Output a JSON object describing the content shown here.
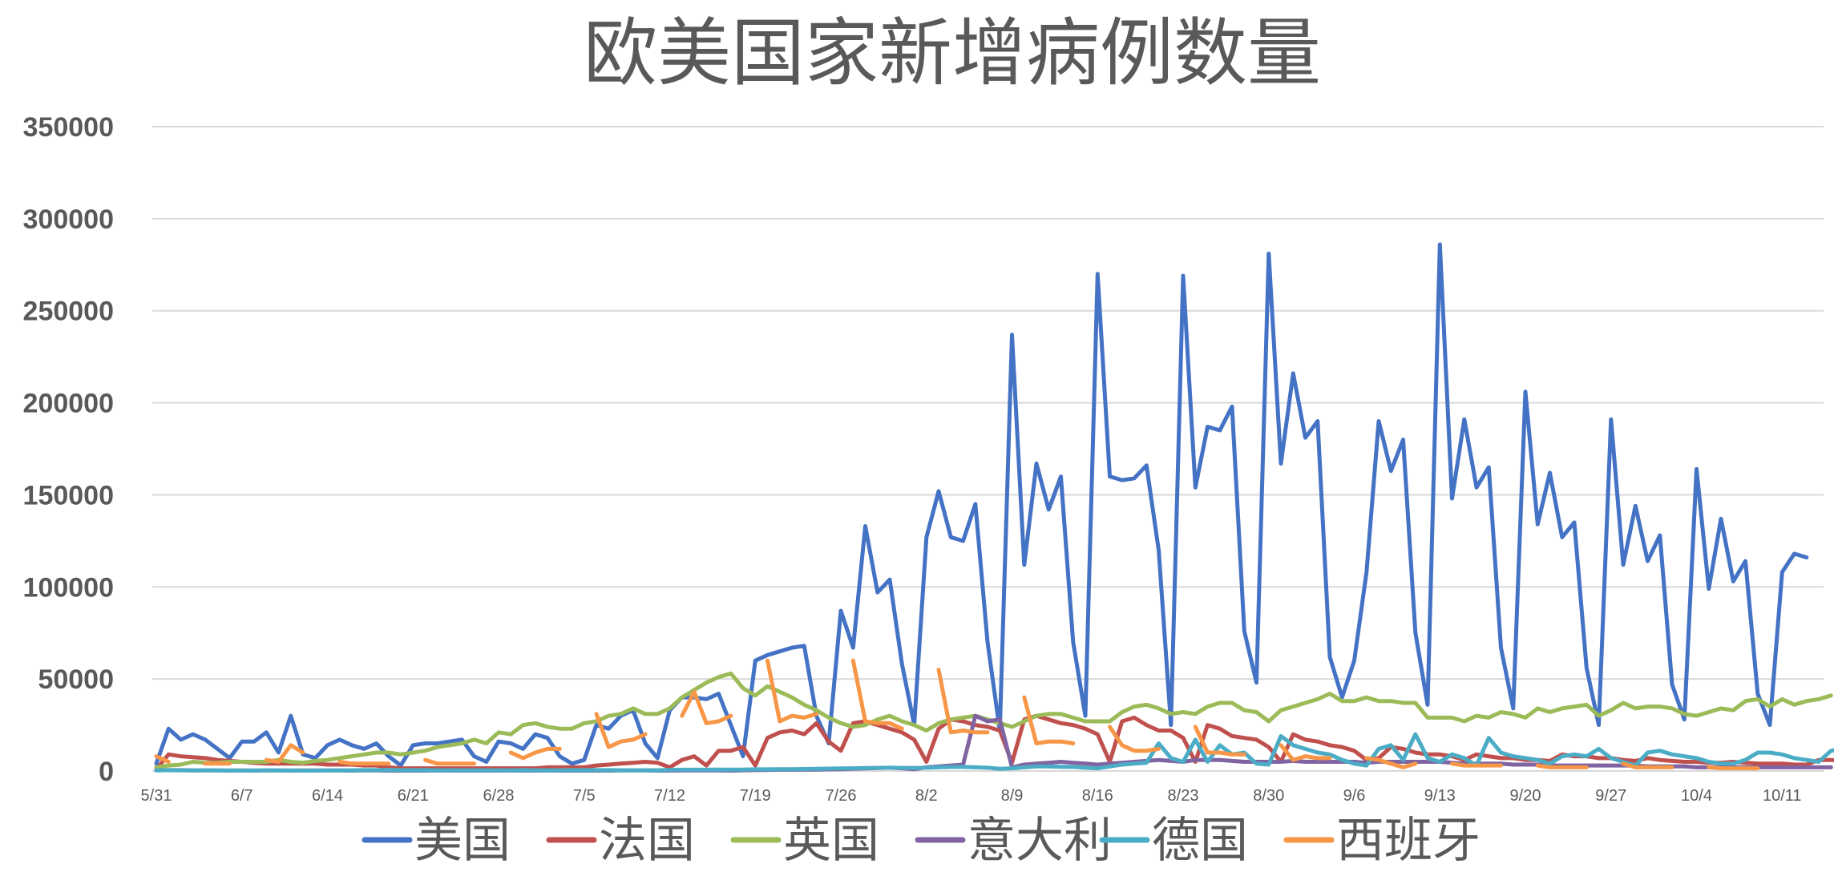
{
  "chart_data": {
    "type": "line",
    "title": "欧美国家新增病例数量",
    "xlabel": "",
    "ylabel": "",
    "ylim": [
      0,
      350000
    ],
    "y_ticks": [
      0,
      50000,
      100000,
      150000,
      200000,
      250000,
      300000,
      350000
    ],
    "y_tick_labels": [
      "0",
      "50000",
      "100000",
      "150000",
      "200000",
      "250000",
      "300000",
      "350000"
    ],
    "x_start": "5/31",
    "x_ticks": [
      "5/31",
      "6/7",
      "6/14",
      "6/21",
      "6/28",
      "7/5",
      "7/12",
      "7/19",
      "7/26",
      "8/2",
      "8/9",
      "8/16",
      "8/23",
      "8/30",
      "9/6",
      "9/13",
      "9/20",
      "9/27",
      "10/4",
      "10/11"
    ],
    "grid": true,
    "legend": "bottom",
    "series": [
      {
        "name": "美国",
        "color": "#4472c4",
        "values": [
          4000,
          23000,
          17000,
          20000,
          17000,
          12000,
          7000,
          16000,
          16000,
          21000,
          10000,
          30000,
          9000,
          7000,
          14000,
          17000,
          14000,
          12000,
          15000,
          8000,
          3000,
          14000,
          15000,
          15000,
          16000,
          17000,
          8000,
          5000,
          16000,
          15000,
          12000,
          20000,
          18000,
          8000,
          4000,
          6000,
          25000,
          23000,
          30000,
          33000,
          15000,
          7000,
          33000,
          40000,
          40000,
          39000,
          42000,
          25000,
          8000,
          60000,
          63000,
          65000,
          67000,
          68000,
          30000,
          15000,
          87000,
          67000,
          133000,
          97000,
          104000,
          58000,
          25000,
          127000,
          152000,
          127000,
          125000,
          145000,
          70000,
          22000,
          237000,
          112000,
          167000,
          142000,
          160000,
          70000,
          30000,
          270000,
          160000,
          158000,
          159000,
          166000,
          120000,
          25000,
          269000,
          154000,
          187000,
          185000,
          198000,
          76000,
          48000,
          281000,
          167000,
          216000,
          181000,
          190000,
          62000,
          40000,
          60000,
          108000,
          190000,
          163000,
          180000,
          75000,
          36000,
          286000,
          148000,
          191000,
          154000,
          165000,
          67000,
          34000,
          206000,
          134000,
          162000,
          127000,
          135000,
          56000,
          25000,
          191000,
          112000,
          144000,
          114000,
          128000,
          47000,
          28000,
          164000,
          99000,
          137000,
          103000,
          114000,
          42000,
          25000,
          108000,
          118000,
          116000
        ]
      },
      {
        "name": "法国",
        "color": "#c0504d",
        "values": [
          1000,
          9000,
          8000,
          7500,
          7000,
          6000,
          5500,
          5000,
          4500,
          4000,
          4000,
          4000,
          4000,
          4000,
          3500,
          3500,
          3500,
          3000,
          3000,
          2000,
          1500,
          1500,
          1500,
          1500,
          1500,
          1500,
          1500,
          1500,
          1500,
          1500,
          1500,
          1500,
          2000,
          2000,
          2000,
          2000,
          3000,
          3500,
          4000,
          4500,
          5000,
          4500,
          2000,
          6000,
          8000,
          3000,
          11000,
          11000,
          13000,
          3000,
          18000,
          21000,
          22000,
          20000,
          26000,
          16000,
          11000,
          26000,
          27000,
          25000,
          23000,
          21000,
          17000,
          5000,
          23000,
          28000,
          27000,
          25000,
          24000,
          22000,
          4500,
          28000,
          30000,
          28000,
          26000,
          25000,
          23000,
          20000,
          5000,
          27000,
          29000,
          25000,
          22000,
          22000,
          18000,
          5000,
          25000,
          23000,
          19000,
          18000,
          17000,
          13000,
          5000,
          20000,
          17000,
          16000,
          14000,
          13000,
          11000,
          6000,
          7000,
          13000,
          12000,
          10000,
          9000,
          9000,
          8000,
          6000,
          9000,
          8000,
          7000,
          7000,
          6000,
          6000,
          5500,
          9000,
          8000,
          8000,
          7000,
          7000,
          6000,
          5500,
          7000,
          6000,
          5500,
          5000,
          5000,
          4500,
          4500,
          5000,
          4500,
          4000,
          4000,
          4000,
          3500,
          3500,
          6000,
          6000,
          5500
        ]
      },
      {
        "name": "英国",
        "color": "#9bbb59",
        "values": [
          2000,
          3000,
          3500,
          5000,
          4500,
          4500,
          5000,
          5000,
          5000,
          5000,
          6000,
          5000,
          4500,
          5500,
          6000,
          7000,
          8000,
          9000,
          10000,
          10000,
          9000,
          10000,
          11000,
          13000,
          14000,
          15000,
          17000,
          15000,
          21000,
          20000,
          25000,
          26000,
          24000,
          23000,
          23000,
          26000,
          27000,
          30000,
          31000,
          34000,
          31000,
          31000,
          34000,
          40000,
          44000,
          48000,
          51000,
          53000,
          45000,
          41000,
          46000,
          43000,
          40000,
          36000,
          33000,
          29000,
          26000,
          24000,
          25000,
          28000,
          30000,
          27000,
          25000,
          22000,
          26000,
          28000,
          29000,
          30000,
          28000,
          26000,
          24000,
          27000,
          30000,
          31000,
          31000,
          29000,
          27000,
          27000,
          27000,
          32000,
          35000,
          36000,
          34000,
          31000,
          32000,
          31000,
          35000,
          37000,
          37000,
          33000,
          32000,
          27000,
          33000,
          35000,
          37000,
          39000,
          42000,
          38000,
          38000,
          40000,
          38000,
          38000,
          37000,
          37000,
          29000,
          29000,
          29000,
          27000,
          30000,
          29000,
          32000,
          31000,
          29000,
          34000,
          32000,
          34000,
          35000,
          36000,
          30000,
          33000,
          37000,
          34000,
          35000,
          35000,
          34000,
          31000,
          30000,
          32000,
          34000,
          33000,
          38000,
          39000,
          35000,
          39000,
          36000,
          38000,
          39000,
          41000
        ]
      },
      {
        "name": "意大利",
        "color": "#8064a2",
        "values": [
          400,
          500,
          500,
          300,
          300,
          300,
          200,
          300,
          200,
          300,
          300,
          200,
          300,
          300,
          300,
          300,
          200,
          300,
          300,
          200,
          200,
          200,
          200,
          300,
          200,
          200,
          200,
          200,
          200,
          300,
          200,
          200,
          300,
          200,
          200,
          200,
          200,
          200,
          300,
          300,
          300,
          200,
          200,
          300,
          300,
          300,
          300,
          200,
          400,
          500,
          600,
          700,
          700,
          800,
          800,
          900,
          1000,
          1200,
          1400,
          1600,
          1800,
          1500,
          1000,
          2000,
          2500,
          3000,
          3500,
          30000,
          27000,
          28000,
          2000,
          3500,
          4000,
          4500,
          5000,
          4500,
          4000,
          3500,
          4000,
          4500,
          5000,
          5500,
          6000,
          5500,
          5000,
          6000,
          6000,
          6000,
          5500,
          5000,
          5000,
          5000,
          5000,
          5500,
          5000,
          5000,
          5000,
          5000,
          5000,
          4500,
          5000,
          5000,
          5000,
          5000,
          5000,
          5000,
          4500,
          4000,
          4000,
          4000,
          4000,
          3500,
          3500,
          3500,
          3000,
          3000,
          3000,
          3000,
          3000,
          3000,
          3000,
          3000,
          2500,
          2500,
          2500,
          2500,
          2000,
          2000,
          2000,
          2000,
          2000,
          2000,
          2000,
          2000,
          2000,
          2000,
          2000,
          2000
        ]
      },
      {
        "name": "德国",
        "color": "#4bacc6",
        "values": [
          300,
          500,
          400,
          300,
          400,
          300,
          300,
          200,
          300,
          400,
          300,
          300,
          200,
          200,
          300,
          300,
          400,
          500,
          500,
          600,
          500,
          500,
          500,
          400,
          400,
          400,
          400,
          400,
          400,
          400,
          500,
          400,
          400,
          400,
          500,
          500,
          500,
          500,
          400,
          400,
          400,
          400,
          600,
          700,
          700,
          700,
          800,
          800,
          800,
          900,
          900,
          1000,
          1000,
          1100,
          1200,
          1300,
          1400,
          1500,
          1600,
          1700,
          1800,
          1700,
          1600,
          1800,
          2000,
          2200,
          2200,
          2000,
          1800,
          1200,
          1500,
          2000,
          2500,
          2500,
          2300,
          2200,
          1800,
          1500,
          2500,
          3500,
          4000,
          4500,
          15000,
          7000,
          5000,
          17000,
          5000,
          14000,
          9000,
          10000,
          4000,
          3500,
          19000,
          14000,
          12000,
          10000,
          9000,
          6000,
          4000,
          3000,
          12000,
          14000,
          6000,
          20000,
          7000,
          5000,
          9000,
          7000,
          3000,
          18000,
          10000,
          8000,
          7000,
          6000,
          4000,
          8000,
          9000,
          8000,
          12000,
          7000,
          5000,
          3000,
          10000,
          11000,
          9000,
          8000,
          7000,
          5000,
          4000,
          4000,
          6000,
          10000,
          10000,
          9000,
          7000,
          6000,
          5000,
          11000,
          12000,
          12000
        ]
      },
      {
        "name": "西班牙",
        "color": "#f79646",
        "values": [
          8000,
          5000,
          null,
          null,
          4000,
          4000,
          4000,
          null,
          null,
          6000,
          5000,
          14000,
          10000,
          null,
          null,
          5000,
          4000,
          4000,
          4000,
          4000,
          null,
          null,
          6000,
          4000,
          4000,
          4000,
          4000,
          null,
          null,
          10000,
          7000,
          10000,
          12000,
          12000,
          null,
          null,
          31000,
          13000,
          16000,
          17000,
          20000,
          null,
          null,
          30000,
          43000,
          26000,
          27000,
          30000,
          null,
          null,
          60000,
          27000,
          30000,
          29000,
          31000,
          null,
          null,
          60000,
          27000,
          26000,
          26000,
          23000,
          null,
          null,
          55000,
          21000,
          22000,
          21000,
          21000,
          null,
          null,
          40000,
          15000,
          16000,
          16000,
          15000,
          null,
          null,
          24000,
          14000,
          11000,
          11000,
          12000,
          null,
          null,
          24000,
          10000,
          10000,
          9000,
          9000,
          null,
          null,
          14000,
          6000,
          8000,
          7000,
          7000,
          null,
          null,
          7000,
          6000,
          4000,
          2000,
          4000,
          null,
          null,
          4000,
          3000,
          3000,
          3000,
          3000,
          null,
          null,
          3000,
          2000,
          2000,
          2000,
          2000,
          null,
          null,
          4000,
          2000,
          2000,
          2000,
          2000,
          null,
          null,
          2000,
          1500,
          1500,
          1500,
          1500,
          null,
          null,
          null,
          null,
          null
        ]
      }
    ]
  }
}
